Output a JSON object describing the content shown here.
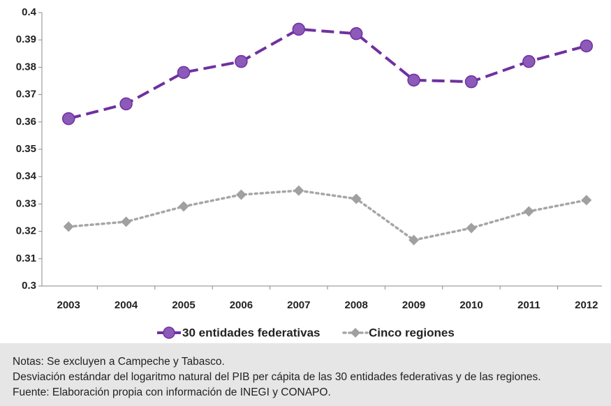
{
  "chart_data": {
    "type": "line",
    "categories": [
      "2003",
      "2004",
      "2005",
      "2006",
      "2007",
      "2008",
      "2009",
      "2010",
      "2011",
      "2012"
    ],
    "series": [
      {
        "name": "30 entidades federativas",
        "color": "#7030a0",
        "marker_color": "#8c5ab8",
        "style": "dashed",
        "marker": "circle",
        "values": [
          0.3612,
          0.3666,
          0.3781,
          0.3821,
          0.3939,
          0.3923,
          0.3753,
          0.3747,
          0.3821,
          0.3878
        ]
      },
      {
        "name": "Cinco regiones",
        "color": "#a6a6a6",
        "marker_color": "#a0a0a0",
        "style": "dotted",
        "marker": "diamond",
        "values": [
          0.3217,
          0.3235,
          0.3291,
          0.3334,
          0.3349,
          0.3319,
          0.3168,
          0.3212,
          0.3273,
          0.3314
        ]
      }
    ],
    "ylim": [
      0.3,
      0.4
    ],
    "yticks": [
      0.3,
      0.31,
      0.32,
      0.33,
      0.34,
      0.35,
      0.36,
      0.37,
      0.38,
      0.39,
      0.4
    ],
    "grid": false,
    "legend": "bottom"
  },
  "notes": [
    "Notas: Se excluyen a Campeche y Tabasco.",
    "Desviación estándar del logaritmo natural del PIB per cápita de las 30 entidades federativas y de las regiones.",
    "Fuente: Elaboración propia con información de INEGI y CONAPO."
  ]
}
